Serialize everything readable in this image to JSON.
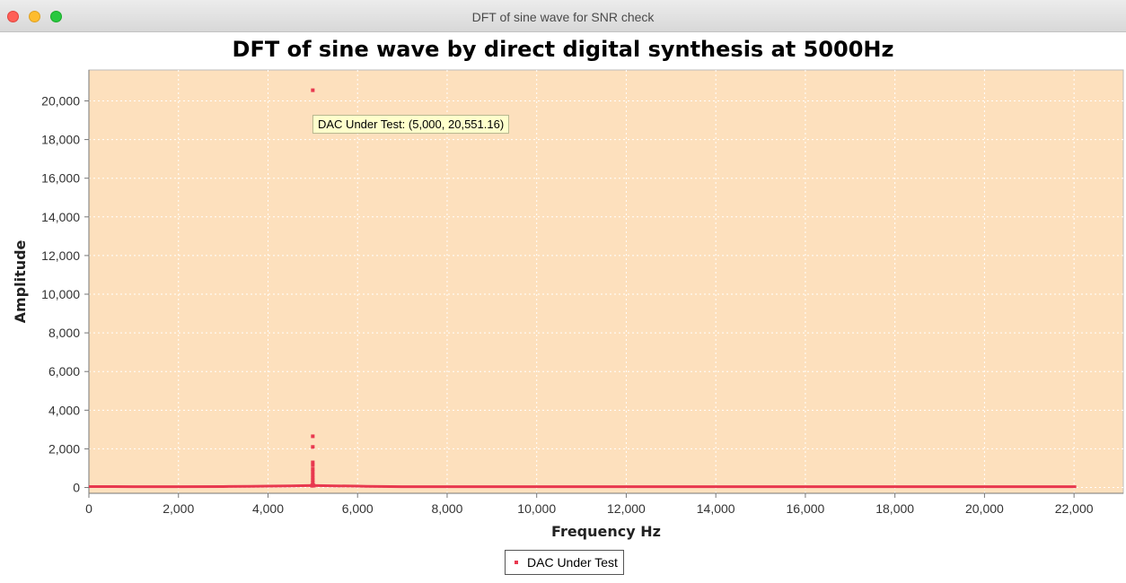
{
  "window": {
    "title": "DFT of sine wave for SNR check"
  },
  "tooltip": {
    "text": "DAC Under Test: (5,000, 20,551.16)"
  },
  "colors": {
    "plot_bg": "#fde0bd",
    "series": "#e8384f",
    "grid": "#ffffff",
    "tooltip_bg": "#ffffcc"
  },
  "chart_data": {
    "type": "scatter",
    "title": "DFT of sine wave by direct digital synthesis at 5000Hz",
    "xlabel": "Frequency Hz",
    "ylabel": "Amplitude",
    "xlim": [
      0,
      23100
    ],
    "ylim": [
      -300,
      21600
    ],
    "x_ticks": [
      {
        "value": 0,
        "label": "0"
      },
      {
        "value": 2000,
        "label": "2,000"
      },
      {
        "value": 4000,
        "label": "4,000"
      },
      {
        "value": 6000,
        "label": "6,000"
      },
      {
        "value": 8000,
        "label": "8,000"
      },
      {
        "value": 10000,
        "label": "10,000"
      },
      {
        "value": 12000,
        "label": "12,000"
      },
      {
        "value": 14000,
        "label": "14,000"
      },
      {
        "value": 16000,
        "label": "16,000"
      },
      {
        "value": 18000,
        "label": "18,000"
      },
      {
        "value": 20000,
        "label": "20,000"
      },
      {
        "value": 22000,
        "label": "22,000"
      }
    ],
    "y_ticks": [
      {
        "value": 0,
        "label": "0"
      },
      {
        "value": 2000,
        "label": "2,000"
      },
      {
        "value": 4000,
        "label": "4,000"
      },
      {
        "value": 6000,
        "label": "6,000"
      },
      {
        "value": 8000,
        "label": "8,000"
      },
      {
        "value": 10000,
        "label": "10,000"
      },
      {
        "value": 12000,
        "label": "12,000"
      },
      {
        "value": 14000,
        "label": "14,000"
      },
      {
        "value": 16000,
        "label": "16,000"
      },
      {
        "value": 18000,
        "label": "18,000"
      },
      {
        "value": 20000,
        "label": "20,000"
      }
    ],
    "grid": true,
    "legend": "bottom-center",
    "series": [
      {
        "name": "DAC Under Test",
        "points": [
          [
            5000,
            20551.16
          ],
          [
            5000,
            2650
          ],
          [
            5000,
            2100
          ],
          [
            5000,
            1300
          ],
          [
            5000,
            1150
          ],
          [
            5000,
            950
          ],
          [
            5000,
            800
          ],
          [
            5000,
            650
          ],
          [
            5000,
            500
          ],
          [
            5000,
            380
          ],
          [
            5000,
            260
          ],
          [
            5000,
            150
          ],
          [
            4990,
            110
          ],
          [
            5010,
            110
          ],
          [
            4980,
            90
          ],
          [
            5020,
            90
          ]
        ],
        "noise_floor": [
          [
            0,
            50
          ],
          [
            1000,
            45
          ],
          [
            2000,
            45
          ],
          [
            3000,
            50
          ],
          [
            3600,
            60
          ],
          [
            4000,
            70
          ],
          [
            4500,
            85
          ],
          [
            4900,
            100
          ],
          [
            5100,
            100
          ],
          [
            5500,
            85
          ],
          [
            6000,
            70
          ],
          [
            6200,
            60
          ],
          [
            7000,
            45
          ],
          [
            9000,
            40
          ],
          [
            11000,
            40
          ],
          [
            13000,
            40
          ],
          [
            14600,
            45
          ],
          [
            16000,
            40
          ],
          [
            18000,
            40
          ],
          [
            20000,
            40
          ],
          [
            22050,
            40
          ]
        ]
      }
    ]
  }
}
